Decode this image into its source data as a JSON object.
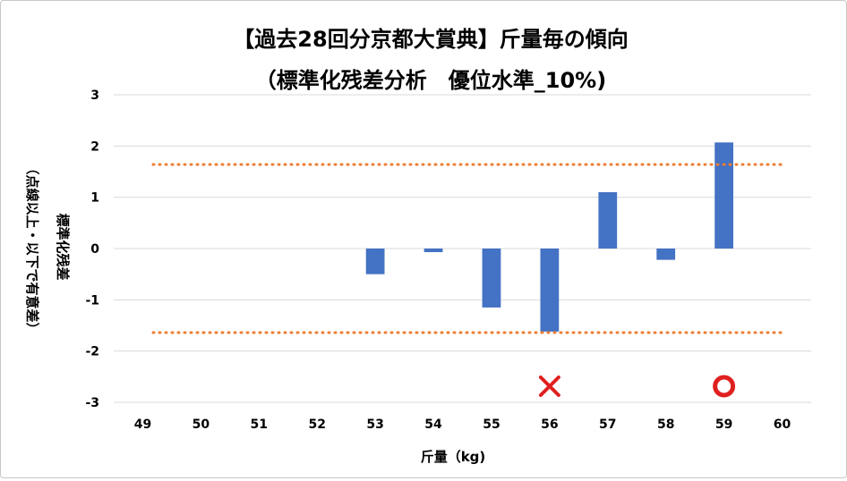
{
  "chart_data": {
    "type": "bar",
    "title": "【過去28回分京都大賞典】斤量毎の傾向",
    "subtitle": "（標準化残差分析　優位水準_10%)",
    "xlabel": "斤量（kg)",
    "ylabel": "標準化残差",
    "ylabel_note": "（点線以上・以下で有意差）",
    "categories": [
      "49",
      "50",
      "51",
      "52",
      "53",
      "54",
      "55",
      "56",
      "57",
      "58",
      "59",
      "60"
    ],
    "values": [
      null,
      null,
      null,
      null,
      -0.5,
      -0.07,
      -1.15,
      -1.62,
      1.1,
      -0.22,
      2.07,
      null
    ],
    "ylim": [
      -3,
      3
    ],
    "yticks": [
      "3",
      "2",
      "1",
      "0",
      "-1",
      "-2",
      "-3"
    ],
    "thresholds": [
      1.64,
      -1.64
    ],
    "bar_color": "#4472c4",
    "threshold_color": "#ed7d31",
    "grid": true,
    "annotations": [
      {
        "category": "56",
        "symbol": "cross",
        "color": "#e02020"
      },
      {
        "category": "59",
        "symbol": "circle",
        "color": "#e02020"
      }
    ]
  }
}
